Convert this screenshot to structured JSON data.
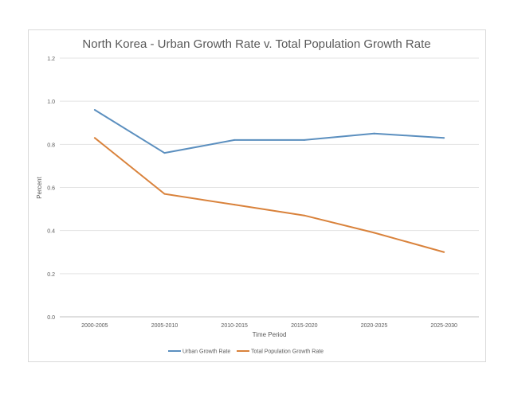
{
  "chart_data": {
    "type": "line",
    "title": "North Korea - Urban Growth Rate v. Total Population Growth Rate",
    "xlabel": "Time Period",
    "ylabel": "Percent",
    "categories": [
      "2000-2005",
      "2005-2010",
      "2010-2015",
      "2015-2020",
      "2020-2025",
      "2025-2030"
    ],
    "ylim": [
      0,
      1.2
    ],
    "yticks": [
      "0.0",
      "0.2",
      "0.4",
      "0.6",
      "0.8",
      "1.0",
      "1.2"
    ],
    "grid": true,
    "legend_position": "bottom",
    "series": [
      {
        "name": "Urban Growth Rate",
        "color": "#5b8fbf",
        "values": [
          0.96,
          0.76,
          0.82,
          0.82,
          0.85,
          0.83
        ]
      },
      {
        "name": "Total Population Growth Rate",
        "color": "#d9823b",
        "values": [
          0.83,
          0.57,
          0.52,
          0.47,
          0.39,
          0.3
        ]
      }
    ]
  }
}
